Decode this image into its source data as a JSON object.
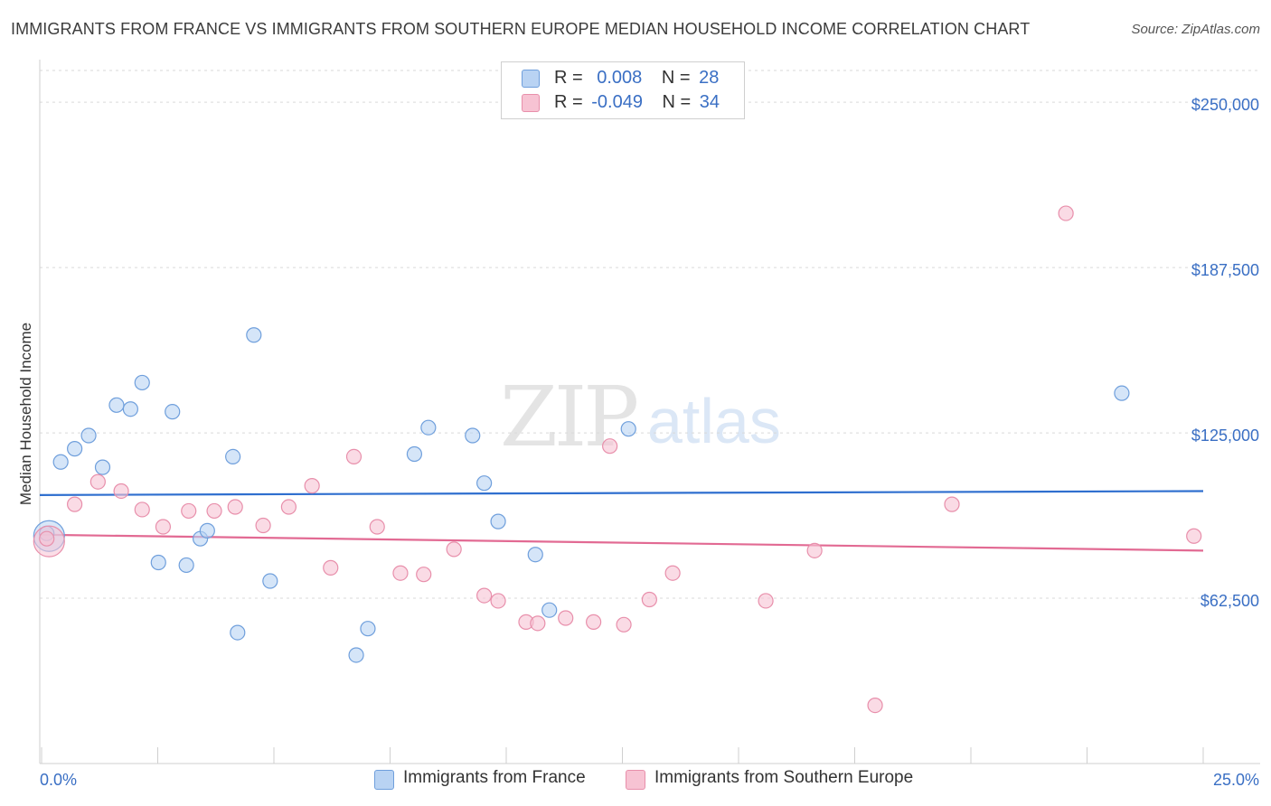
{
  "header": {
    "title": "IMMIGRANTS FROM FRANCE VS IMMIGRANTS FROM SOUTHERN EUROPE MEDIAN HOUSEHOLD INCOME CORRELATION CHART",
    "source": "Source: ZipAtlas.com"
  },
  "watermark": {
    "zip": "ZIP",
    "atlas": "atlas"
  },
  "legend": {
    "france": {
      "r_label": "R =",
      "r_value": "0.008",
      "n_label": "N =",
      "n_value": "28"
    },
    "southern": {
      "r_label": "R =",
      "r_value": "-0.049",
      "n_label": "N =",
      "n_value": "34"
    }
  },
  "colors": {
    "france_fill": "#b9d3f3",
    "france_stroke": "#6f9fdc",
    "france_line": "#2f6fcf",
    "southern_fill": "#f7c3d3",
    "southern_stroke": "#e88fab",
    "southern_line": "#e26a93",
    "tick_label": "#3a6fc4",
    "grid": "#d9d9d9"
  },
  "chart_data": {
    "type": "scatter",
    "title": "IMMIGRANTS FROM FRANCE VS IMMIGRANTS FROM SOUTHERN EUROPE MEDIAN HOUSEHOLD INCOME CORRELATION CHART",
    "xlabel": "",
    "ylabel": "Median Household Income",
    "xlim": [
      0,
      25
    ],
    "ylim": [
      0,
      262000
    ],
    "x_tick_labels": [
      "0.0%",
      "25.0%"
    ],
    "y_ticks": [
      62500,
      125000,
      187500,
      250000
    ],
    "y_tick_labels": [
      "$62,500",
      "$125,000",
      "$187,500",
      "$250,000"
    ],
    "series": [
      {
        "name": "Immigrants from France",
        "trend": [
          [
            0,
            101500
          ],
          [
            25,
            103000
          ]
        ],
        "points": [
          [
            0.15,
            87000
          ],
          [
            0.45,
            114000
          ],
          [
            0.75,
            119000
          ],
          [
            1.05,
            124000
          ],
          [
            1.35,
            112000
          ],
          [
            1.65,
            135500
          ],
          [
            1.95,
            134000
          ],
          [
            2.2,
            144000
          ],
          [
            2.55,
            76000
          ],
          [
            2.85,
            133000
          ],
          [
            3.15,
            75000
          ],
          [
            3.45,
            85000
          ],
          [
            3.6,
            88000
          ],
          [
            4.15,
            116000
          ],
          [
            4.6,
            162000
          ],
          [
            4.25,
            49500
          ],
          [
            4.95,
            69000
          ],
          [
            6.8,
            41000
          ],
          [
            7.05,
            51000
          ],
          [
            8.05,
            117000
          ],
          [
            8.35,
            127000
          ],
          [
            9.3,
            124000
          ],
          [
            9.55,
            106000
          ],
          [
            9.85,
            91500
          ],
          [
            10.65,
            79000
          ],
          [
            10.95,
            58000
          ],
          [
            12.65,
            126500
          ],
          [
            23.25,
            140000
          ]
        ],
        "large_point": [
          0.2,
          86000
        ]
      },
      {
        "name": "Immigrants from Southern Europe",
        "trend": [
          [
            0,
            86500
          ],
          [
            25,
            80500
          ]
        ],
        "points": [
          [
            0.15,
            85000
          ],
          [
            0.75,
            98000
          ],
          [
            1.25,
            106500
          ],
          [
            1.75,
            103000
          ],
          [
            2.2,
            96000
          ],
          [
            2.65,
            89500
          ],
          [
            3.2,
            95500
          ],
          [
            3.75,
            95500
          ],
          [
            4.2,
            97000
          ],
          [
            4.8,
            90000
          ],
          [
            5.35,
            97000
          ],
          [
            5.85,
            105000
          ],
          [
            6.25,
            74000
          ],
          [
            6.75,
            116000
          ],
          [
            7.25,
            89500
          ],
          [
            7.75,
            72000
          ],
          [
            8.25,
            71500
          ],
          [
            8.9,
            81000
          ],
          [
            9.55,
            63500
          ],
          [
            9.85,
            61500
          ],
          [
            10.45,
            53500
          ],
          [
            10.7,
            53000
          ],
          [
            11.3,
            55000
          ],
          [
            11.9,
            53500
          ],
          [
            12.25,
            120000
          ],
          [
            12.55,
            52500
          ],
          [
            13.1,
            62000
          ],
          [
            13.6,
            72000
          ],
          [
            15.6,
            61500
          ],
          [
            16.65,
            80500
          ],
          [
            17.95,
            22000
          ],
          [
            19.6,
            98000
          ],
          [
            22.05,
            208000
          ],
          [
            24.8,
            86000
          ]
        ],
        "large_point": [
          0.2,
          84000
        ]
      }
    ]
  },
  "bottom_legend": {
    "france_label": "Immigrants from France",
    "southern_label": "Immigrants from Southern Europe"
  }
}
